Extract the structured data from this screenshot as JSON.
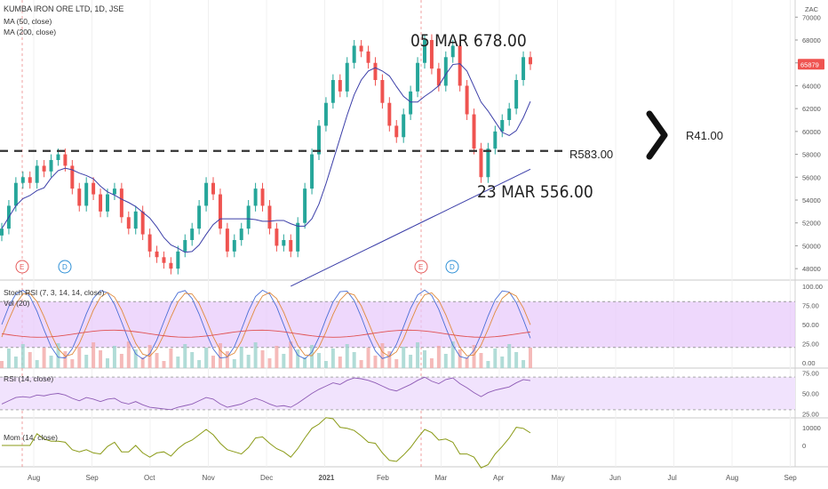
{
  "header": {
    "symbol": "KUMBA IRON ORE LTD, 1D, JSE",
    "ma50_label": "MA (50, close)",
    "ma200_label": "MA (200, close)",
    "currency": "ZAC"
  },
  "panes": {
    "stoch_label": "Stoch RSI (7, 3, 14, 14, close)",
    "vol_label": "Vol (20)",
    "rsi_label": "RSI (14, close)",
    "mom_label": "Mom (14, close)"
  },
  "annotations": {
    "high": "05 MAR  678.00",
    "low": "23 MAR 556.00",
    "support": "R583.00",
    "target": "R41.00",
    "earnings_marker": "E",
    "dividend_marker": "D"
  },
  "chart_data": {
    "type": "candlestick",
    "price_axis": {
      "ticks": [
        "70000",
        "68000",
        "66000",
        "64000",
        "62000",
        "60000",
        "58000",
        "56000",
        "54000",
        "52000",
        "50000",
        "48000"
      ],
      "ylim": [
        47000,
        71500
      ],
      "last_price": "65879"
    },
    "time_axis": [
      "Aug",
      "Sep",
      "Oct",
      "Nov",
      "Dec",
      "2021",
      "Feb",
      "Mar",
      "Apr",
      "May",
      "Jun",
      "Jul",
      "Aug",
      "Sep"
    ],
    "series_close": [
      51500,
      53500,
      55500,
      56000,
      55500,
      57000,
      56500,
      57500,
      58000,
      57000,
      55000,
      53500,
      55500,
      54500,
      53000,
      54500,
      55000,
      52500,
      51500,
      53000,
      51000,
      49500,
      49000,
      48500,
      48000,
      49500,
      50500,
      51500,
      53500,
      55500,
      54500,
      51500,
      49500,
      50500,
      51500,
      53500,
      55000,
      53500,
      51500,
      50000,
      50500,
      49500,
      52000,
      55000,
      58000,
      60500,
      62500,
      64500,
      63500,
      66000,
      67500,
      67000,
      66000,
      64500,
      62500,
      60500,
      59500,
      61500,
      63500,
      66000,
      68000,
      65500,
      64000,
      66500,
      67500,
      64000,
      61500,
      58500,
      56000,
      58500,
      60000,
      61000,
      62000,
      64500,
      66500,
      65879
    ],
    "support_level": 58300,
    "stoch_rsi_ticks": [
      "100.00",
      "75.00",
      "50.00",
      "25.00",
      "0.00"
    ],
    "rsi_ticks": [
      "75.00",
      "50.00",
      "25.00"
    ],
    "mom_ticks": [
      "10000",
      "0"
    ]
  },
  "colors": {
    "up": "#26a69a",
    "down": "#ef5350",
    "ma50": "#3b3ea8",
    "ma200": "#3b3ea8",
    "stoch_band": "#e7c8fb",
    "rsi_band": "#f1e3fd",
    "mom_line": "#8a9a16",
    "price_badge": "#ef5350"
  }
}
